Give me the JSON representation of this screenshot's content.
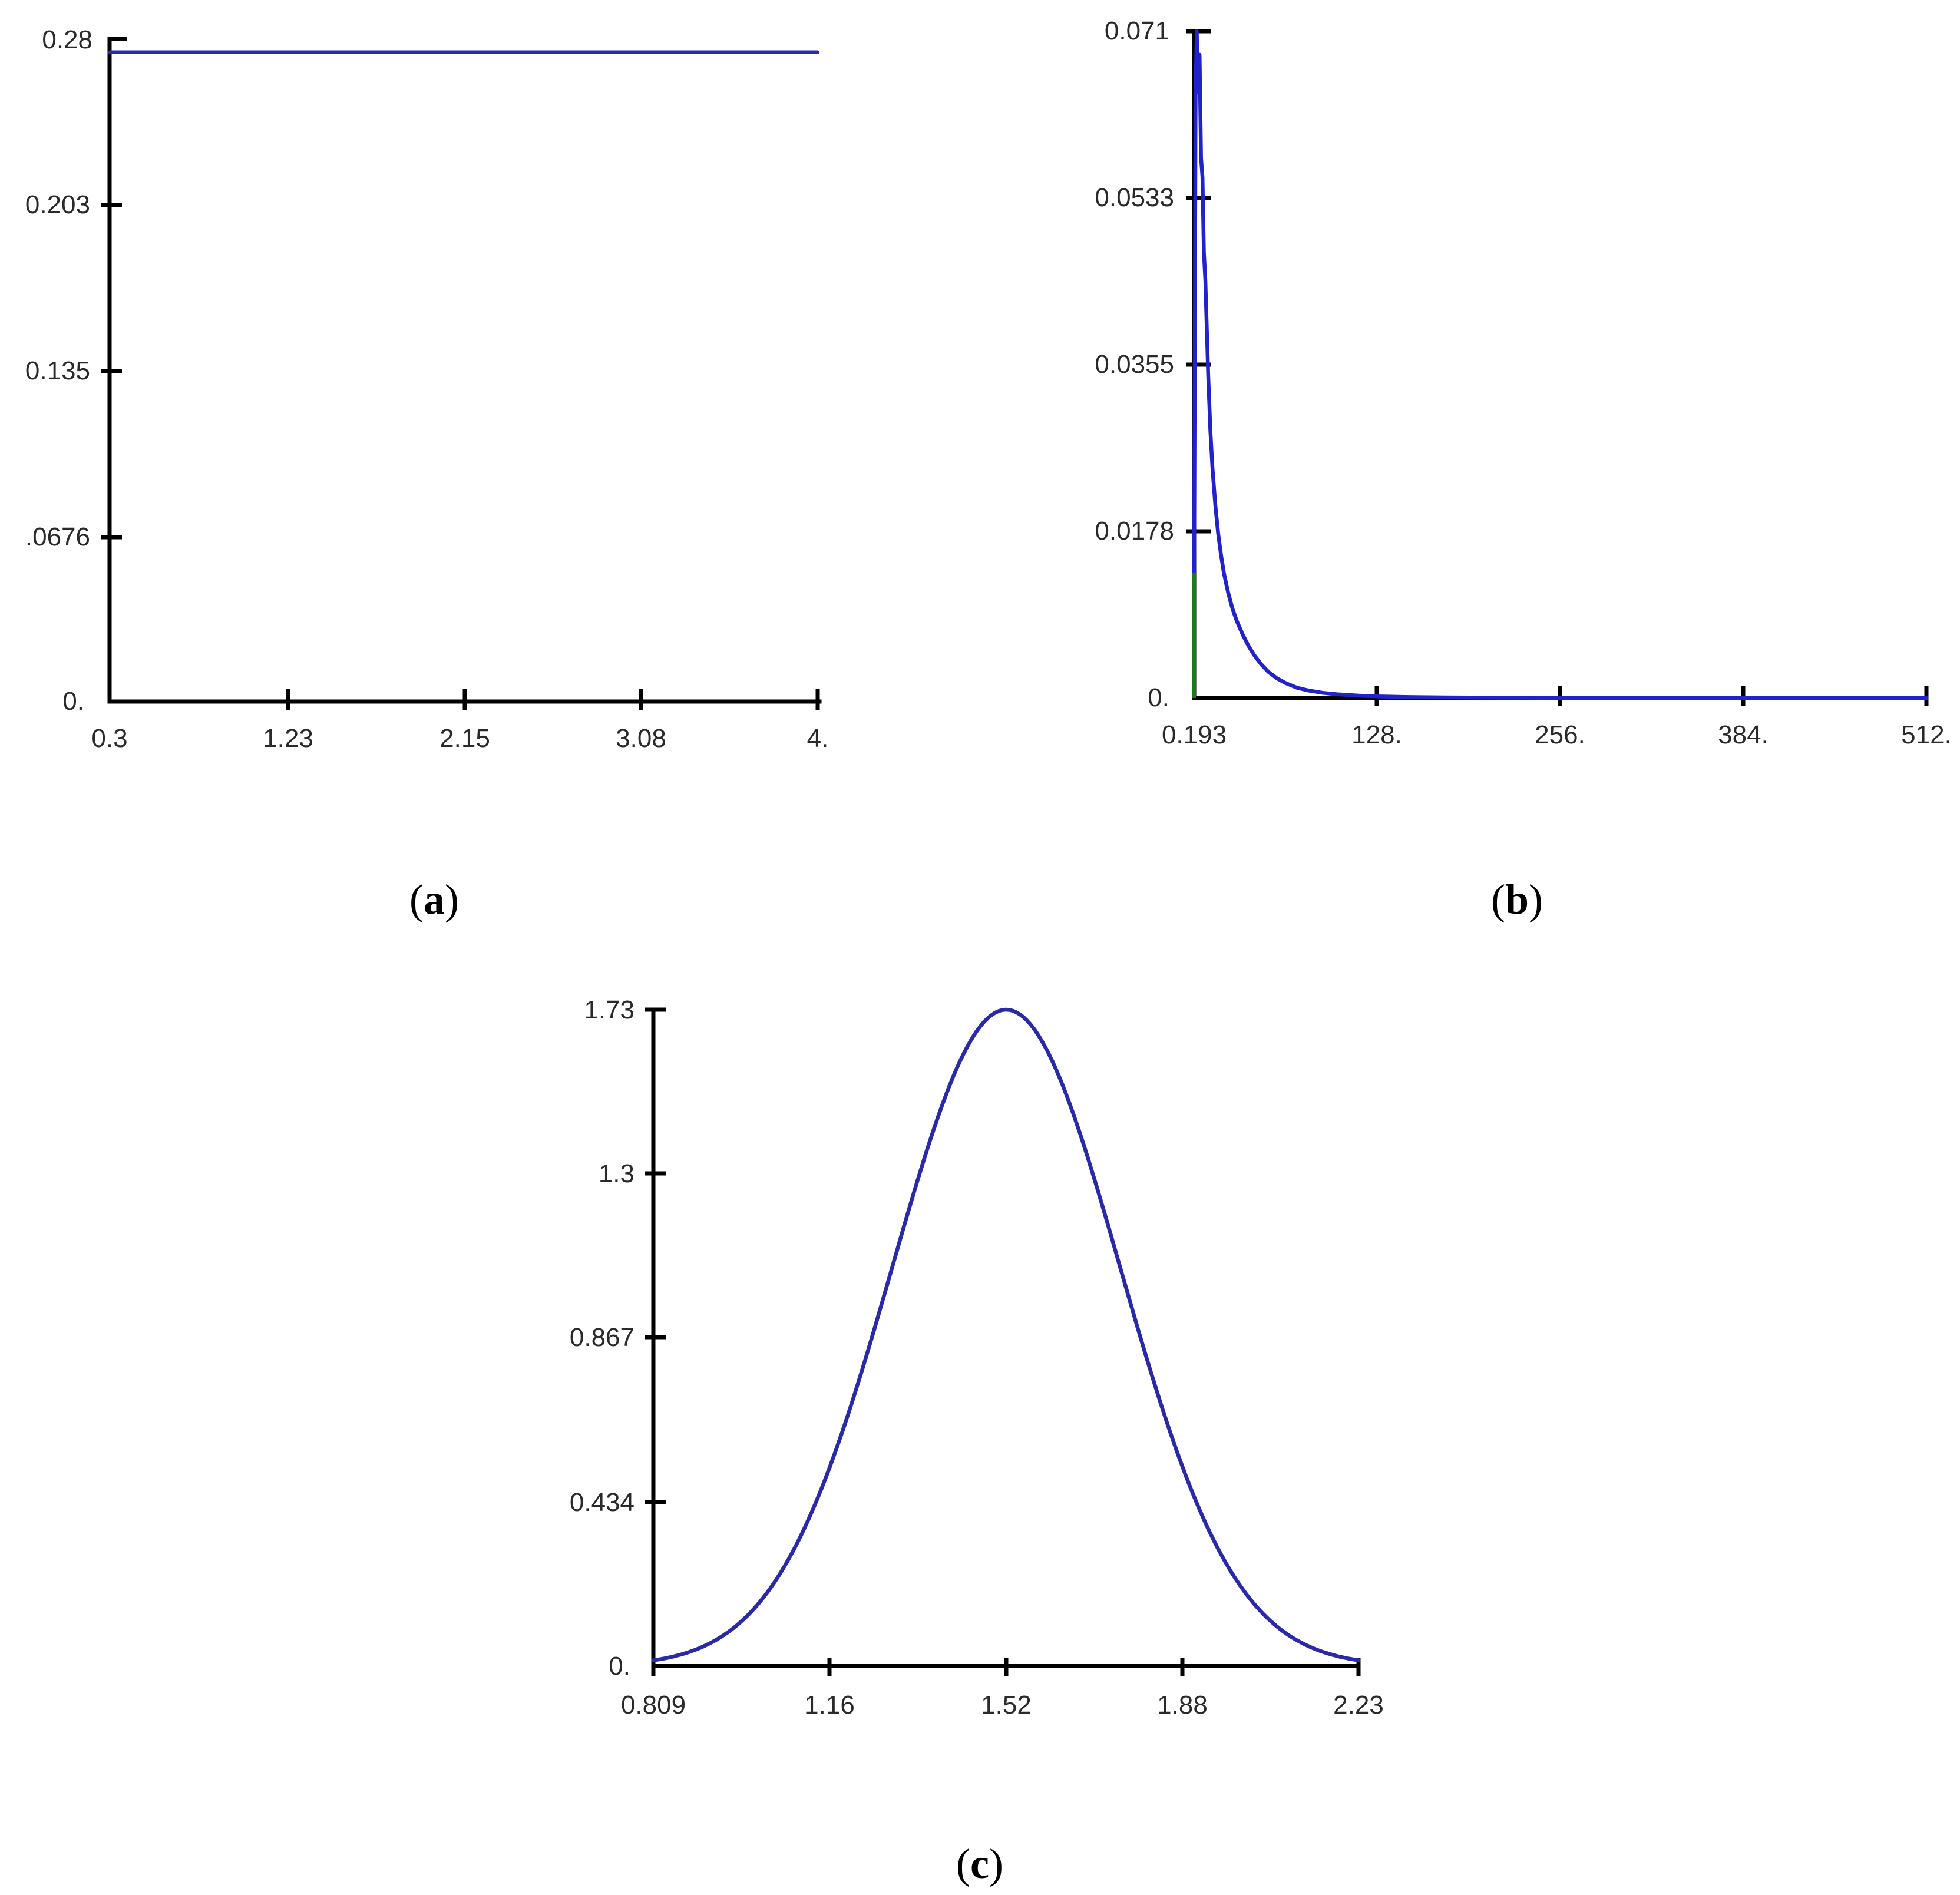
{
  "chart_data": [
    {
      "type": "line",
      "panel_label": "a",
      "title": "",
      "xlabel": "",
      "ylabel": "",
      "x_ticks": [
        "0.3",
        "1.23",
        "2.15",
        "3.08",
        "4."
      ],
      "y_ticks": [
        "0.28",
        "0.203",
        "0.135",
        ".0676",
        "0."
      ],
      "xlim": [
        0.3,
        4.0
      ],
      "ylim": [
        0,
        0.27
      ],
      "grid": false,
      "series": [
        {
          "color": "#2a2aa8",
          "x": [
            0.3,
            4.0
          ],
          "y": [
            0.2703,
            0.2703
          ]
        }
      ]
    },
    {
      "type": "line",
      "panel_label": "b",
      "title": "",
      "xlabel": "",
      "ylabel": "",
      "x_ticks": [
        "0.193",
        "128.",
        "256.",
        "384.",
        "512."
      ],
      "y_ticks": [
        "0.071",
        "0.0533",
        "0.0355",
        "0.0178",
        "0."
      ],
      "xlim": [
        0.193,
        512
      ],
      "ylim": [
        0,
        0.071
      ],
      "grid": false,
      "series": [
        {
          "color": "#2222cc",
          "x": [
            0.193,
            0.6,
            1.2,
            2,
            3,
            4,
            5,
            6,
            7,
            8,
            9,
            10,
            11.5,
            13,
            15,
            17,
            19,
            21,
            24,
            27,
            30,
            34,
            38,
            42,
            47,
            52,
            58,
            64,
            72,
            80,
            90,
            100,
            115,
            130,
            150,
            175,
            200,
            250,
            300,
            400,
            512
          ],
          "y": [
            0.0135,
            0.035,
            0.064,
            0.071,
            0.0645,
            0.0685,
            0.0575,
            0.0555,
            0.0475,
            0.0445,
            0.0395,
            0.0345,
            0.0285,
            0.0245,
            0.0205,
            0.0175,
            0.0152,
            0.0133,
            0.0112,
            0.0095,
            0.0082,
            0.0068,
            0.0056,
            0.0046,
            0.0036,
            0.0028,
            0.0021,
            0.0016,
            0.0011,
            0.0008,
            0.00055,
            0.0004,
            0.00025,
            0.00016,
            0.0001,
            6e-05,
            4e-05,
            2e-05,
            1e-05,
            0.0,
            0.0
          ]
        }
      ],
      "markers": [
        {
          "color": "#1a7a1a",
          "x": 0.193,
          "y_from": 0,
          "y_to": 0.0135
        }
      ]
    },
    {
      "type": "line",
      "panel_label": "c",
      "title": "",
      "xlabel": "",
      "ylabel": "",
      "x_ticks": [
        "0.809",
        "1.16",
        "1.52",
        "1.88",
        "2.23"
      ],
      "y_ticks": [
        "1.73",
        "1.3",
        "0.867",
        "0.434",
        "0."
      ],
      "xlim": [
        0.809,
        2.23
      ],
      "ylim": [
        0,
        1.73
      ],
      "grid": false,
      "series": [
        {
          "color": "#2a2aa8",
          "distribution": "normal",
          "mean": 1.52,
          "sd": 0.23,
          "x_range": [
            0.809,
            2.23
          ],
          "peak": 1.73
        }
      ]
    }
  ],
  "captions": [
    {
      "open": "(",
      "letter": "a",
      "close": ")"
    },
    {
      "open": "(",
      "letter": "b",
      "close": ")"
    },
    {
      "open": "(",
      "letter": "c",
      "close": ")"
    }
  ]
}
